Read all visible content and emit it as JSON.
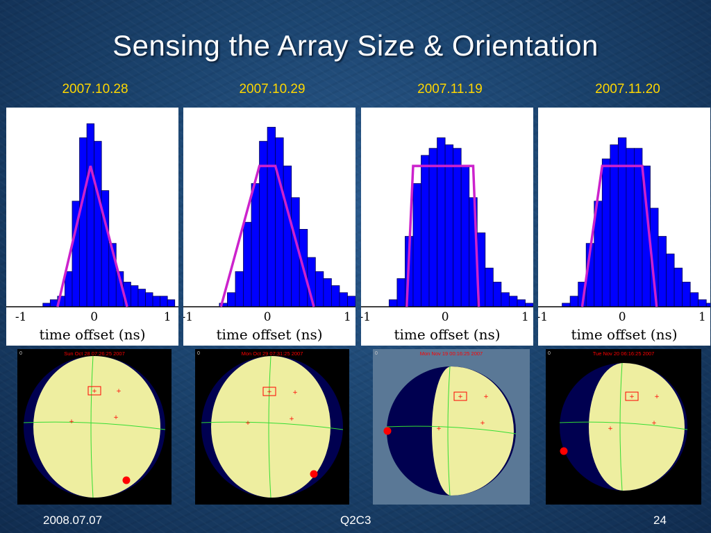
{
  "slide": {
    "title": "Sensing the Array Size & Orientation",
    "footer": {
      "left": "2008.07.07",
      "center": "Q2C3",
      "right": "24"
    }
  },
  "colors": {
    "bar_fill": "#0000ff",
    "bar_stroke": "#000055",
    "trapezoid": "#cc22cc",
    "globe_lit": "#eeeea0",
    "globe_dark": "#000050",
    "marker": "#ff0000"
  },
  "chart_data": [
    {
      "type": "bar",
      "title": "2007.10.28",
      "xlabel": "time offset (ns)",
      "xlim": [
        -1.2,
        1.15
      ],
      "xticks": [
        -1,
        0,
        1
      ],
      "bin_start": -0.9,
      "bin_width": 0.1,
      "values": [
        0,
        0,
        1,
        2,
        3,
        10,
        30,
        48,
        52,
        47,
        33,
        18,
        10,
        7,
        6,
        5,
        4,
        3,
        3,
        2
      ],
      "ylim": [
        0,
        55
      ],
      "trapezoid": {
        "x": [
          -0.5,
          -0.05,
          -0.05,
          0.45
        ],
        "top": 40
      },
      "globe": {
        "timestamp": "Sun Oct 28 07:26:25 2007",
        "lit_shape": "near-full",
        "background": "#000000",
        "corner_mark": "0"
      }
    },
    {
      "type": "bar",
      "title": "2007.10.29",
      "xlabel": "time offset (ns)",
      "xlim": [
        -1.05,
        1.1
      ],
      "xticks": [
        -1,
        0,
        1
      ],
      "bin_start": -0.7,
      "bin_width": 0.1,
      "values": [
        0,
        1,
        4,
        10,
        24,
        35,
        47,
        51,
        48,
        40,
        31,
        22,
        14,
        10,
        8,
        6,
        4,
        3,
        2
      ],
      "ylim": [
        0,
        55
      ],
      "trapezoid": {
        "x": [
          -0.58,
          -0.1,
          0.1,
          0.58
        ],
        "top": 40
      },
      "globe": {
        "timestamp": "Mon Oct 29 07:31:25 2007",
        "lit_shape": "near-full",
        "background": "#000000",
        "corner_mark": "0"
      }
    },
    {
      "type": "bar",
      "title": "2007.11.19",
      "xlabel": "time offset (ns)",
      "xlim": [
        -1.05,
        1.1
      ],
      "xticks": [
        -1,
        0,
        1
      ],
      "bin_start": -0.8,
      "bin_width": 0.1,
      "values": [
        0,
        2,
        8,
        20,
        35,
        43,
        45,
        48,
        46,
        45,
        40,
        31,
        21,
        11,
        7,
        4,
        3,
        2,
        1
      ],
      "ylim": [
        0,
        55
      ],
      "trapezoid": {
        "x": [
          -0.48,
          -0.4,
          0.35,
          0.42
        ],
        "top": 40
      },
      "globe": {
        "timestamp": "Mon Nov 19 00:16:25 2007",
        "lit_shape": "half",
        "background": "#5a7896",
        "corner_mark": "0"
      }
    },
    {
      "type": "bar",
      "title": "2007.11.20",
      "xlabel": "time offset (ns)",
      "xlim": [
        -1.05,
        1.1
      ],
      "xticks": [
        -1,
        0,
        1
      ],
      "bin_start": -0.85,
      "bin_width": 0.1,
      "values": [
        0,
        1,
        3,
        7,
        18,
        30,
        42,
        46,
        48,
        45,
        45,
        40,
        28,
        20,
        15,
        11,
        7,
        4,
        2,
        1
      ],
      "ylim": [
        0,
        55
      ],
      "trapezoid": {
        "x": [
          -0.5,
          -0.25,
          0.25,
          0.43
        ],
        "top": 40
      },
      "globe": {
        "timestamp": "Tue Nov 20 06:16:25 2007",
        "lit_shape": "gibbous",
        "background": "#000000",
        "corner_mark": "0"
      }
    }
  ]
}
